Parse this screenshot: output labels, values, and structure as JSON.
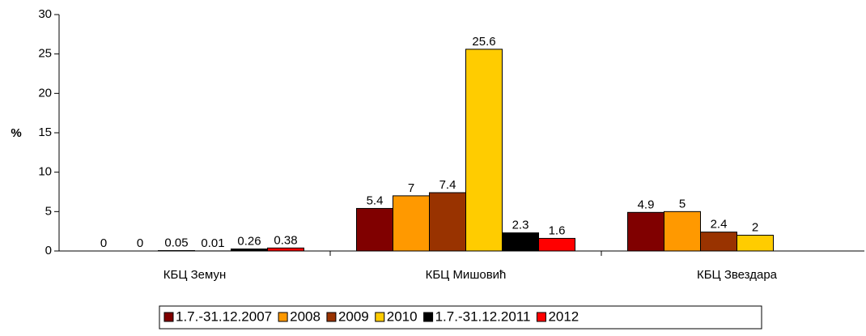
{
  "chart_data": {
    "type": "bar",
    "y_label": "%",
    "categories": [
      "КБЦ Земун",
      "КБЦ Мишовић",
      "КБЦ Звездара"
    ],
    "series": [
      {
        "name": "1.7.-31.12.2007",
        "color": "#800000",
        "values": [
          0,
          5.4,
          4.9
        ]
      },
      {
        "name": "2008",
        "color": "#ff9900",
        "values": [
          0,
          7,
          5
        ]
      },
      {
        "name": "2009",
        "color": "#993300",
        "values": [
          0.05,
          7.4,
          2.4
        ]
      },
      {
        "name": "2010",
        "color": "#ffcc00",
        "values": [
          0.01,
          25.6,
          2
        ]
      },
      {
        "name": "1.7.-31.12.2011",
        "color": "#000000",
        "values": [
          0.26,
          2.3,
          null
        ]
      },
      {
        "name": "2012",
        "color": "#ff0000",
        "values": [
          0.38,
          1.6,
          null
        ]
      }
    ],
    "ylim": [
      0,
      30
    ],
    "yticks": [
      0,
      5,
      10,
      15,
      20,
      25,
      30
    ]
  }
}
